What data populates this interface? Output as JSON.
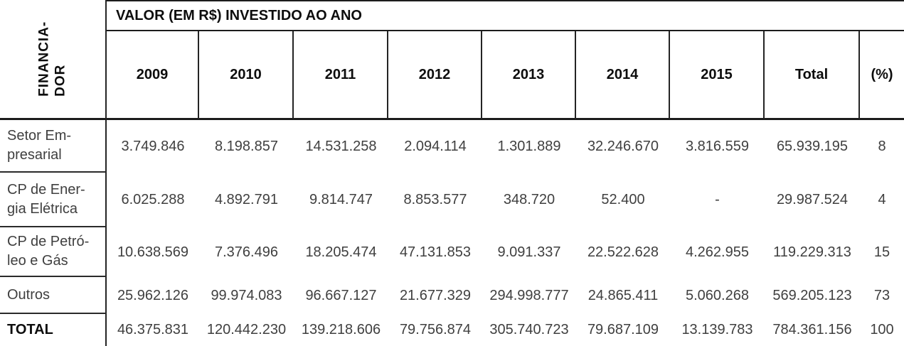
{
  "table": {
    "corner_header": "FINANCIA-\nDOR",
    "span_header": "VALOR (EM R$) INVESTIDO AO ANO",
    "columns": [
      "2009",
      "2010",
      "2011",
      "2012",
      "2013",
      "2014",
      "2015",
      "Total",
      "(%)"
    ],
    "rows": [
      {
        "label": "Setor Em-\npresarial",
        "values": [
          "3.749.846",
          "8.198.857",
          "14.531.258",
          "2.094.114",
          "1.301.889",
          "32.246.670",
          "3.816.559",
          "65.939.195",
          "8"
        ]
      },
      {
        "label": "CP de Ener-\ngia Elétrica",
        "values": [
          "6.025.288",
          "4.892.791",
          "9.814.747",
          "8.853.577",
          "348.720",
          "52.400",
          "-",
          "29.987.524",
          "4"
        ]
      },
      {
        "label": "CP de Petró-\nleo e Gás",
        "values": [
          "10.638.569",
          "7.376.496",
          "18.205.474",
          "47.131.853",
          "9.091.337",
          "22.522.628",
          "4.262.955",
          "119.229.313",
          "15"
        ]
      },
      {
        "label": "Outros",
        "values": [
          "25.962.126",
          "99.974.083",
          "96.667.127",
          "21.677.329",
          "294.998.777",
          "24.865.411",
          "5.060.268",
          "569.205.123",
          "73"
        ]
      },
      {
        "label": "TOTAL",
        "values": [
          "46.375.831",
          "120.442.230",
          "139.218.606",
          "79.756.874",
          "305.740.723",
          "79.687.109",
          "13.139.783",
          "784.361.156",
          "100"
        ]
      }
    ],
    "colors": {
      "header_text": "#0d0d0d",
      "data_text": "#3f3f3f",
      "border": "#1c1c1c",
      "background": "#ffffff"
    }
  }
}
